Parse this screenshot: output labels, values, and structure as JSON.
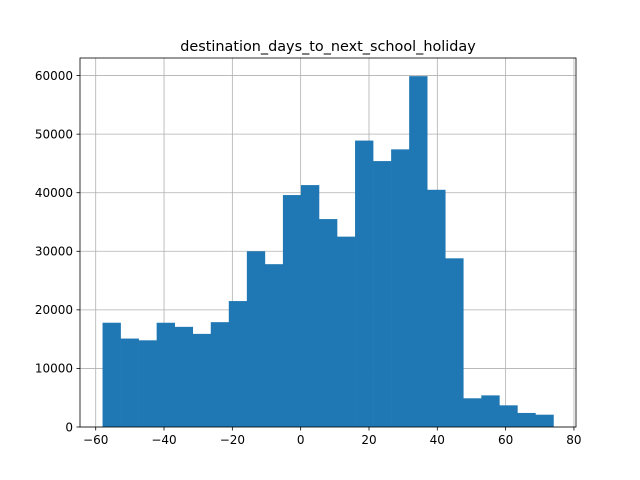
{
  "chart_data": {
    "type": "bar",
    "title": "destination_days_to_next_school_holiday",
    "xlabel": "",
    "ylabel": "",
    "xlim": [
      -64.6,
      80.6
    ],
    "ylim": [
      0,
      63000
    ],
    "bin_edges": [
      -58,
      -52.72,
      -47.44,
      -42.16,
      -36.88,
      -31.6,
      -26.32,
      -21.04,
      -15.76,
      -10.48,
      -5.2,
      0.08,
      5.36,
      10.64,
      15.92,
      21.2,
      26.48,
      31.76,
      37.04,
      42.32,
      47.6,
      52.88,
      58.16,
      63.44,
      68.72,
      74
    ],
    "values": [
      17800,
      15100,
      14800,
      17800,
      17100,
      15900,
      17900,
      21500,
      30000,
      27800,
      39600,
      41300,
      35500,
      32500,
      48900,
      45400,
      47400,
      59900,
      40500,
      28800,
      4900,
      5400,
      3700,
      2400,
      2100
    ],
    "xticks": [
      -60,
      -40,
      -20,
      0,
      20,
      40,
      60,
      80
    ],
    "xtick_labels": [
      "−60",
      "−40",
      "−20",
      "0",
      "20",
      "40",
      "60",
      "80"
    ],
    "yticks": [
      0,
      10000,
      20000,
      30000,
      40000,
      50000,
      60000
    ],
    "ytick_labels": [
      "0",
      "10000",
      "20000",
      "30000",
      "40000",
      "50000",
      "60000"
    ],
    "grid": true,
    "legend": "none",
    "colors": {
      "bar": "#1f77b4",
      "grid": "#b0b0b0",
      "axes": "#000000",
      "background": "#ffffff"
    }
  }
}
